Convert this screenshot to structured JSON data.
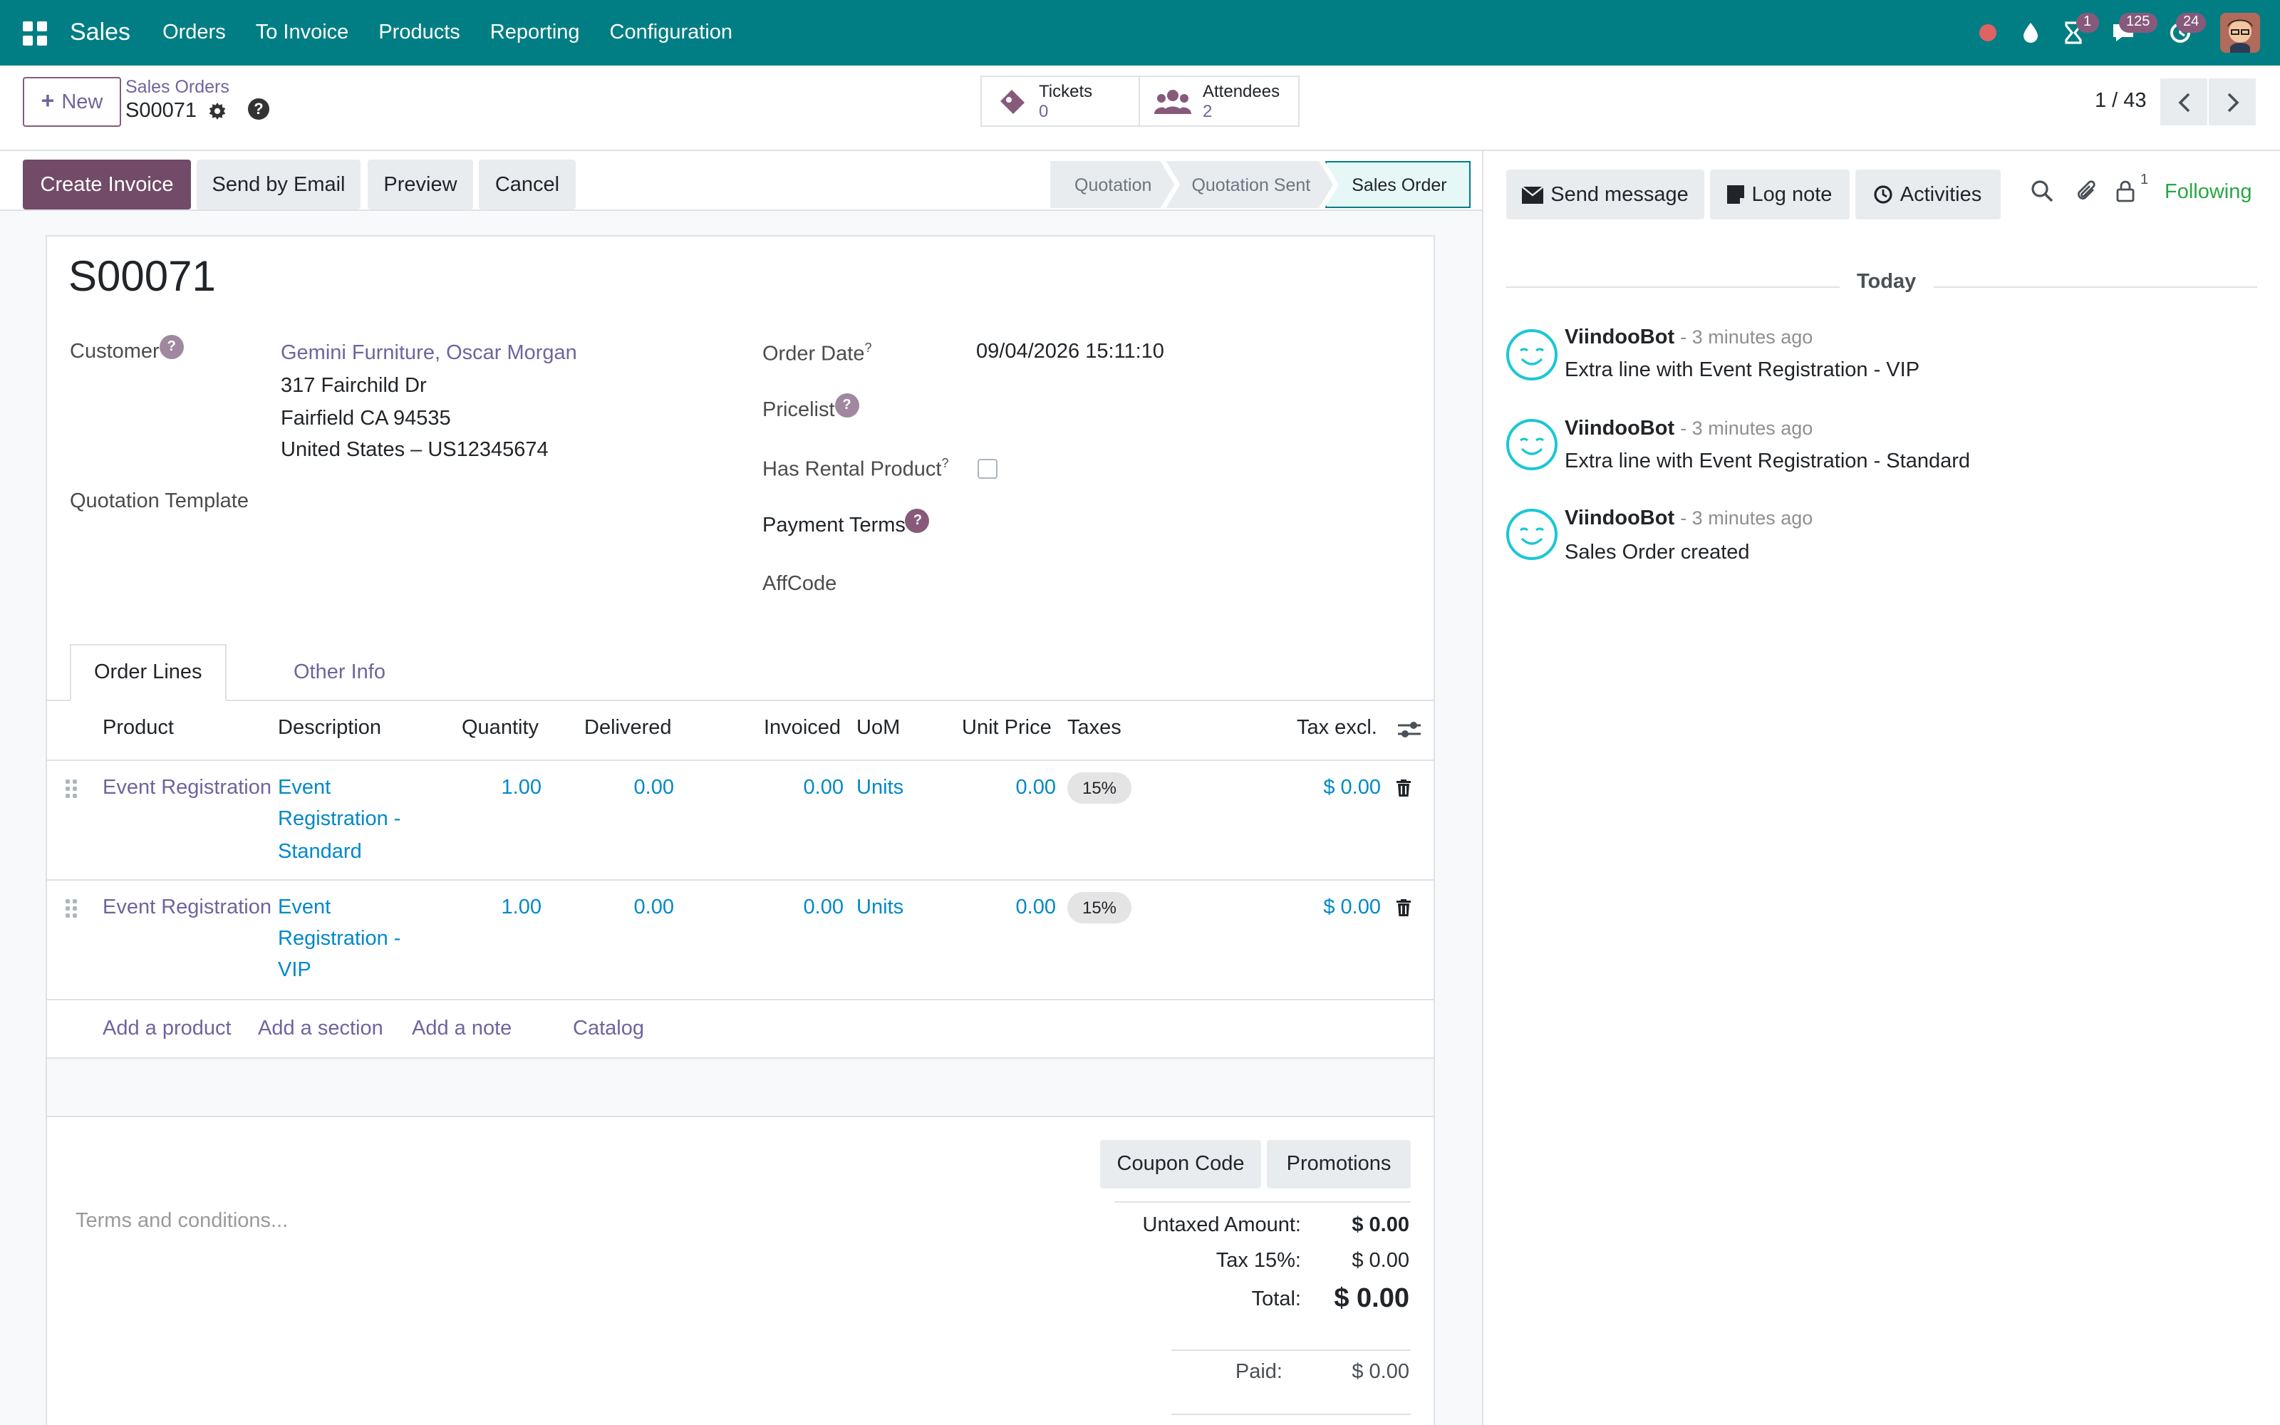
{
  "app": {
    "name": "Sales",
    "menu": [
      "Orders",
      "To Invoice",
      "Products",
      "Reporting",
      "Configuration"
    ],
    "badges": {
      "activities": "1",
      "messages": "125",
      "updates": "24"
    }
  },
  "control_panel": {
    "new_label": "New",
    "breadcrumb": "Sales Orders",
    "record_name": "S00071",
    "smart_buttons": [
      {
        "label": "Tickets",
        "value": "0"
      },
      {
        "label": "Attendees",
        "value": "2"
      }
    ],
    "pager": "1 / 43"
  },
  "statusbar": {
    "actions": [
      "Create Invoice",
      "Send by Email",
      "Preview",
      "Cancel"
    ],
    "stages": [
      "Quotation",
      "Quotation Sent",
      "Sales Order"
    ],
    "active_stage": "Sales Order"
  },
  "form": {
    "title": "S00071",
    "customer_label": "Customer",
    "customer_name": "Gemini Furniture, Oscar Morgan",
    "address_line1": "317 Fairchild Dr",
    "address_line2": "Fairfield CA 94535",
    "address_line3": "United States – US12345674",
    "quotation_template_label": "Quotation Template",
    "order_date_label": "Order Date",
    "order_date_value": "09/04/2026 15:11:10",
    "pricelist_label": "Pricelist",
    "has_rental_label": "Has Rental Product",
    "payment_terms_label": "Payment Terms",
    "affcode_label": "AffCode",
    "help_mark": "?"
  },
  "tabs": [
    "Order Lines",
    "Other Info"
  ],
  "order_lines": {
    "headers": [
      "Product",
      "Description",
      "Quantity",
      "Delivered",
      "Invoiced",
      "UoM",
      "Unit Price",
      "Taxes",
      "Tax excl."
    ],
    "rows": [
      {
        "product": "Event Registration",
        "desc1": "Event",
        "desc2": "Registration -",
        "desc3": "Standard",
        "qty": "1.00",
        "delivered": "0.00",
        "invoiced": "0.00",
        "uom": "Units",
        "price": "0.00",
        "tax": "15%",
        "subtotal": "$ 0.00"
      },
      {
        "product": "Event Registration",
        "desc1": "Event",
        "desc2": "Registration -",
        "desc3": "VIP",
        "qty": "1.00",
        "delivered": "0.00",
        "invoiced": "0.00",
        "uom": "Units",
        "price": "0.00",
        "tax": "15%",
        "subtotal": "$ 0.00"
      }
    ],
    "add_links": [
      "Add a product",
      "Add a section",
      "Add a note",
      "Catalog"
    ]
  },
  "footer": {
    "coupon_label": "Coupon Code",
    "promotions_label": "Promotions",
    "terms_placeholder": "Terms and conditions...",
    "untaxed_label": "Untaxed Amount:",
    "untaxed_value": "$ 0.00",
    "tax_label": "Tax 15%:",
    "tax_value": "$ 0.00",
    "total_label": "Total:",
    "total_value": "$ 0.00",
    "paid_label": "Paid:",
    "paid_value": "$ 0.00"
  },
  "chatter": {
    "send_message": "Send message",
    "log_note": "Log note",
    "activities": "Activities",
    "followers_count": "1",
    "following": "Following",
    "today": "Today",
    "messages": [
      {
        "author": "ViindooBot",
        "time": "- 3 minutes ago",
        "body": "Extra line with Event Registration - VIP"
      },
      {
        "author": "ViindooBot",
        "time": "- 3 minutes ago",
        "body": "Extra line with Event Registration - Standard"
      },
      {
        "author": "ViindooBot",
        "time": "- 3 minutes ago",
        "body": "Sales Order created"
      }
    ]
  },
  "colors": {
    "navbar": "#017e84",
    "primary": "#714b67",
    "link": "#71639e",
    "numeric_link": "#0189c7",
    "following": "#28a745"
  }
}
